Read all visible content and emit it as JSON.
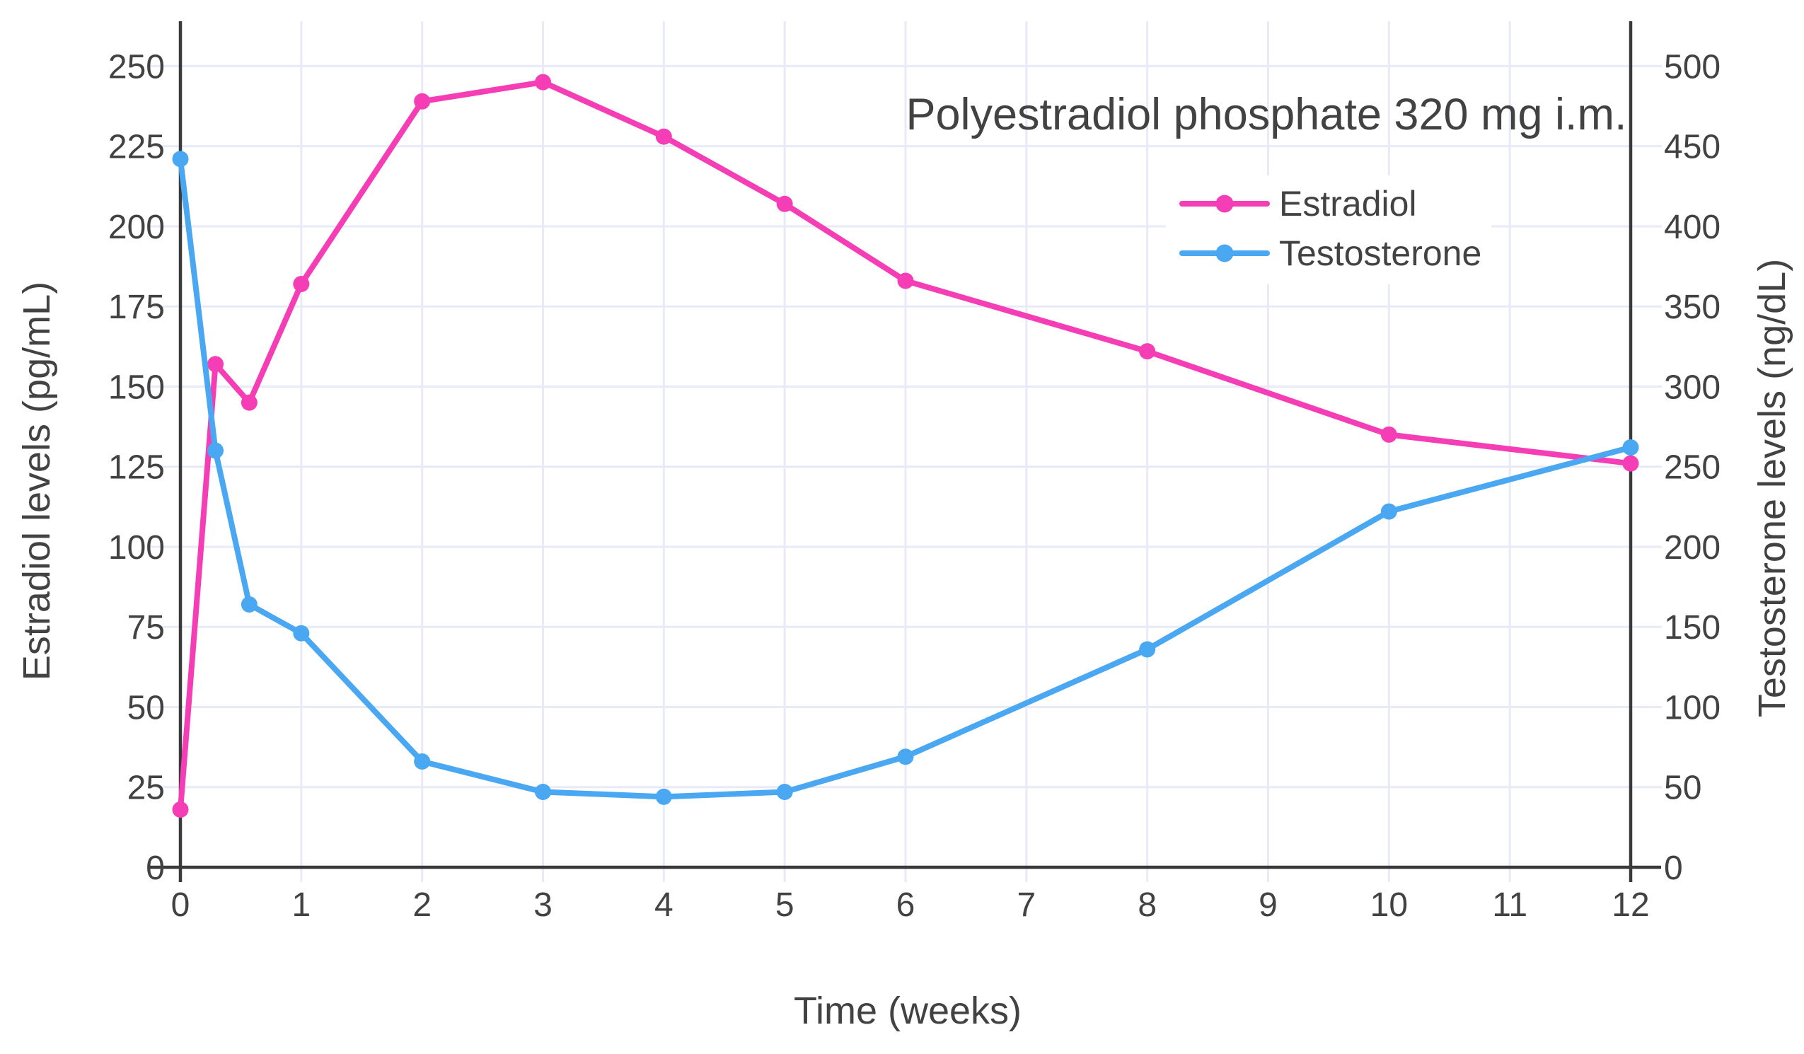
{
  "chart_data": {
    "type": "line",
    "title_annotation": "Polyestradiol phosphate 320 mg i.m.",
    "xlabel": "Time (weeks)",
    "ylabel_left": "Estradiol levels (pg/mL)",
    "ylabel_right": "Testosterone levels (ng/dL)",
    "xlim": [
      0,
      12
    ],
    "ylim_left": [
      0,
      264
    ],
    "ylim_right": [
      0,
      528
    ],
    "x_ticks": [
      0,
      1,
      2,
      3,
      4,
      5,
      6,
      7,
      8,
      9,
      10,
      11,
      12
    ],
    "y_left_ticks": [
      0,
      25,
      50,
      75,
      100,
      125,
      150,
      175,
      200,
      225,
      250
    ],
    "y_right_ticks": [
      0,
      50,
      100,
      150,
      200,
      250,
      300,
      350,
      400,
      450,
      500
    ],
    "grid": true,
    "legend_position": "top-right",
    "x": [
      0,
      0.29,
      0.57,
      1,
      2,
      3,
      4,
      5,
      6,
      8,
      10,
      12
    ],
    "series": [
      {
        "name": "Estradiol",
        "axis": "left",
        "unit": "pg/mL",
        "color": "#F53DB5",
        "values": [
          18,
          157,
          145,
          182,
          239,
          245,
          228,
          207,
          183,
          161,
          135,
          126
        ]
      },
      {
        "name": "Testosterone",
        "axis": "right",
        "unit": "ng/dL",
        "color": "#4AA7F2",
        "values": [
          442,
          260,
          164,
          146,
          66,
          47,
          44,
          47,
          69,
          136,
          222,
          262
        ]
      }
    ],
    "colors": {
      "text": "#424242",
      "axis_line": "#3A3A3A",
      "gridline": "#E8EBF7",
      "background": "#FFFFFF"
    }
  }
}
